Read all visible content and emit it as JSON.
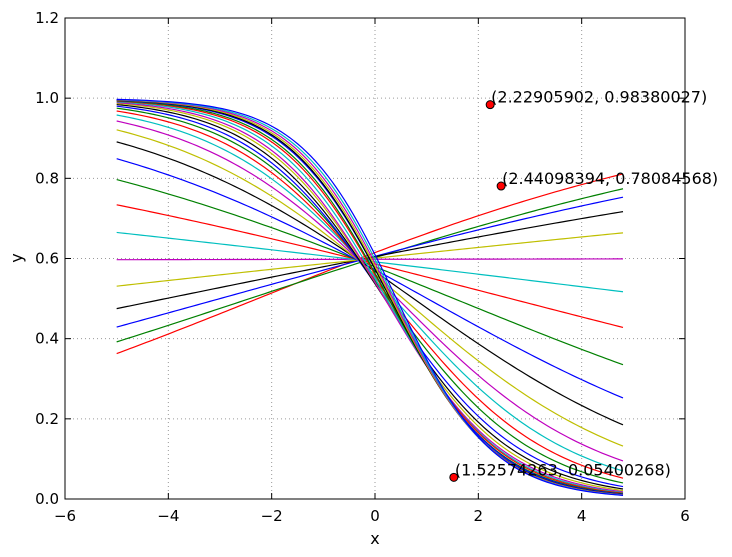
{
  "chart_data": {
    "type": "line",
    "xlabel": "x",
    "ylabel": "y",
    "xlim": [
      -6,
      6
    ],
    "ylim": [
      0.0,
      1.2
    ],
    "xticks": [
      -6,
      -4,
      -2,
      0,
      2,
      4,
      6
    ],
    "xtick_labels": [
      "−6",
      "−4",
      "−2",
      "0",
      "2",
      "4",
      "6"
    ],
    "yticks": [
      0.0,
      0.2,
      0.4,
      0.6,
      0.8,
      1.0,
      1.2
    ],
    "ytick_labels": [
      "0.0",
      "0.2",
      "0.4",
      "0.6",
      "0.8",
      "1.0",
      "1.2"
    ],
    "grid": true,
    "x_range": [
      -5.0,
      4.8
    ],
    "series": [
      {
        "color": "#ff0000",
        "values_at_x_range": [
          0.3628,
          0.811
        ]
      },
      {
        "color": "#008000",
        "values_at_x_range": [
          0.392,
          0.774
        ]
      },
      {
        "color": "#0000ff",
        "values_at_x_range": [
          0.429,
          0.753
        ]
      },
      {
        "color": "#000000",
        "values_at_x_range": [
          0.475,
          0.717
        ]
      },
      {
        "color": "#bfbf00",
        "values_at_x_range": [
          0.531,
          0.664
        ]
      },
      {
        "color": "#bf00bf",
        "values_at_x_range": [
          0.597,
          0.599
        ]
      },
      {
        "color": "#00bfbf",
        "values_at_x_range": [
          0.665,
          0.517
        ]
      },
      {
        "color": "#ff0000",
        "values_at_x_range": [
          0.734,
          0.428
        ]
      },
      {
        "color": "#008000",
        "values_at_x_range": [
          0.797,
          0.335
        ]
      },
      {
        "color": "#0000ff",
        "values_at_x_range": [
          0.849,
          0.252
        ]
      },
      {
        "color": "#000000",
        "values_at_x_range": [
          0.891,
          0.185
        ]
      },
      {
        "color": "#bfbf00",
        "values_at_x_range": [
          0.921,
          0.132
        ]
      },
      {
        "color": "#bf00bf",
        "values_at_x_range": [
          0.943,
          0.095
        ]
      },
      {
        "color": "#00bfbf",
        "values_at_x_range": [
          0.958,
          0.07
        ]
      },
      {
        "color": "#ff0000",
        "values_at_x_range": [
          0.968,
          0.052
        ]
      },
      {
        "color": "#008000",
        "values_at_x_range": [
          0.975,
          0.04
        ]
      },
      {
        "color": "#0000ff",
        "values_at_x_range": [
          0.98,
          0.031
        ]
      },
      {
        "color": "#000000",
        "values_at_x_range": [
          0.984,
          0.025
        ]
      },
      {
        "color": "#bfbf00",
        "values_at_x_range": [
          0.987,
          0.021
        ]
      },
      {
        "color": "#bf00bf",
        "values_at_x_range": [
          0.989,
          0.018
        ]
      },
      {
        "color": "#00bfbf",
        "values_at_x_range": [
          0.991,
          0.016
        ]
      },
      {
        "color": "#ff0000",
        "values_at_x_range": [
          0.9925,
          0.0145
        ]
      },
      {
        "color": "#008000",
        "values_at_x_range": [
          0.9935,
          0.013
        ]
      },
      {
        "color": "#0000ff",
        "values_at_x_range": [
          0.9945,
          0.012
        ]
      },
      {
        "color": "#000000",
        "values_at_x_range": [
          0.995,
          0.011
        ]
      },
      {
        "color": "#bfbf00",
        "values_at_x_range": [
          0.9955,
          0.0105
        ]
      },
      {
        "color": "#bf00bf",
        "values_at_x_range": [
          0.996,
          0.01
        ]
      },
      {
        "color": "#00bfbf",
        "values_at_x_range": [
          0.9965,
          0.0095
        ]
      },
      {
        "color": "#0000ff",
        "values_at_x_range": [
          0.997,
          0.009
        ]
      }
    ],
    "points": [
      {
        "x": 2.22905902,
        "y": 0.98380027,
        "label": "(2.22905902, 0.98380027)",
        "color": "#ff0000"
      },
      {
        "x": 2.44098394,
        "y": 0.78084568,
        "label": "(2.44098394, 0.78084568)",
        "color": "#ff0000"
      },
      {
        "x": 1.52574263,
        "y": 0.05400268,
        "label": "(1.52574263, 0.05400268)",
        "color": "#ff0000"
      }
    ]
  }
}
